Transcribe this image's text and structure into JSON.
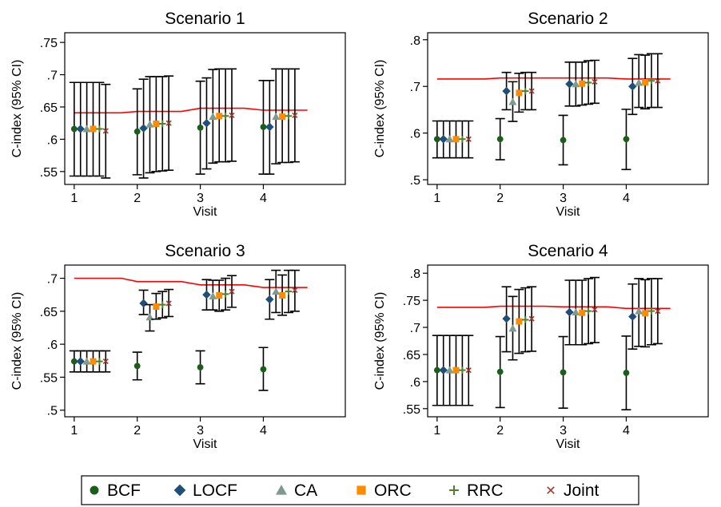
{
  "legend": {
    "placement": "bottom",
    "items": [
      {
        "label": "BCF",
        "color": "#1a5e1a",
        "icon": "circle-icon"
      },
      {
        "label": "LOCF",
        "color": "#1f4e79",
        "icon": "diamond-icon"
      },
      {
        "label": "CA",
        "color": "#7f9a8e",
        "icon": "triangle-icon"
      },
      {
        "label": "ORC",
        "color": "#ff8c00",
        "icon": "square-icon"
      },
      {
        "label": "RRC",
        "color": "#4f7f2f",
        "icon": "plus-icon"
      },
      {
        "label": "Joint",
        "color": "#a0392c",
        "icon": "cross-icon"
      }
    ]
  },
  "reference_color": "#ff0000",
  "chart_data": [
    {
      "type": "scatter",
      "title": "Scenario 1",
      "xlabel": "Visit",
      "ylabel": "C-index (95% CI)",
      "xticks": [
        1,
        2,
        3,
        4
      ],
      "yticks": [
        0.55,
        0.6,
        0.65,
        0.7,
        0.75
      ],
      "ytick_labels": [
        ".55",
        ".6",
        ".65",
        ".7",
        ".75"
      ],
      "xlim": [
        0.85,
        5.3
      ],
      "ylim": [
        0.53,
        0.765
      ],
      "reference_line": {
        "x": [
          1,
          1.75,
          2,
          2.7,
          3,
          3.7,
          4,
          4.7
        ],
        "y": [
          0.641,
          0.641,
          0.643,
          0.643,
          0.648,
          0.648,
          0.645,
          0.645
        ]
      },
      "series": [
        {
          "name": "BCF",
          "x": [
            1,
            2,
            3,
            4
          ],
          "y": [
            0.616,
            0.612,
            0.618,
            0.619
          ],
          "lower": [
            0.543,
            0.545,
            0.546,
            0.546
          ],
          "upper": [
            0.688,
            0.678,
            0.69,
            0.691
          ]
        },
        {
          "name": "LOCF",
          "x": [
            1.1,
            2.1,
            3.1,
            4.1
          ],
          "y": [
            0.616,
            0.617,
            0.625,
            0.619
          ],
          "lower": [
            0.543,
            0.54,
            0.554,
            0.546
          ],
          "upper": [
            0.688,
            0.693,
            0.695,
            0.691
          ]
        },
        {
          "name": "CA",
          "x": [
            1.2,
            2.2,
            3.2,
            4.2
          ],
          "y": [
            0.616,
            0.623,
            0.635,
            0.635
          ],
          "lower": [
            0.543,
            0.548,
            0.563,
            0.562
          ],
          "upper": [
            0.688,
            0.697,
            0.708,
            0.709
          ]
        },
        {
          "name": "ORC",
          "x": [
            1.3,
            2.3,
            3.3,
            4.3
          ],
          "y": [
            0.616,
            0.624,
            0.636,
            0.635
          ],
          "lower": [
            0.543,
            0.55,
            0.565,
            0.564
          ],
          "upper": [
            0.688,
            0.697,
            0.709,
            0.709
          ]
        },
        {
          "name": "RRC",
          "x": [
            1.4,
            2.4,
            3.4,
            4.4
          ],
          "y": [
            0.616,
            0.624,
            0.636,
            0.636
          ],
          "lower": [
            0.543,
            0.551,
            0.565,
            0.564
          ],
          "upper": [
            0.688,
            0.697,
            0.709,
            0.709
          ]
        },
        {
          "name": "Joint",
          "x": [
            1.5,
            2.5,
            3.5,
            4.5
          ],
          "y": [
            0.613,
            0.625,
            0.637,
            0.637
          ],
          "lower": [
            0.54,
            0.552,
            0.566,
            0.565
          ],
          "upper": [
            0.685,
            0.698,
            0.709,
            0.709
          ]
        }
      ]
    },
    {
      "type": "scatter",
      "title": "Scenario 2",
      "xlabel": "Visit",
      "ylabel": "C-index (95% CI)",
      "xticks": [
        1,
        2,
        3,
        4
      ],
      "yticks": [
        0.5,
        0.6,
        0.7,
        0.8
      ],
      "ytick_labels": [
        ".5",
        ".6",
        ".7",
        ".8"
      ],
      "xlim": [
        0.85,
        5.3
      ],
      "ylim": [
        0.49,
        0.815
      ],
      "reference_line": {
        "x": [
          1,
          1.75,
          2,
          2.7,
          3,
          3.7,
          4,
          4.7
        ],
        "y": [
          0.716,
          0.716,
          0.718,
          0.718,
          0.718,
          0.718,
          0.716,
          0.716
        ]
      },
      "series": [
        {
          "name": "BCF",
          "x": [
            1,
            2,
            3,
            4
          ],
          "y": [
            0.587,
            0.587,
            0.585,
            0.587
          ],
          "lower": [
            0.547,
            0.543,
            0.532,
            0.522
          ],
          "upper": [
            0.626,
            0.631,
            0.638,
            0.651
          ]
        },
        {
          "name": "LOCF",
          "x": [
            1.1,
            2.1,
            3.1,
            4.1
          ],
          "y": [
            0.587,
            0.69,
            0.705,
            0.7
          ],
          "lower": [
            0.547,
            0.65,
            0.658,
            0.64
          ],
          "upper": [
            0.626,
            0.73,
            0.752,
            0.76
          ]
        },
        {
          "name": "CA",
          "x": [
            1.2,
            2.2,
            3.2,
            4.2
          ],
          "y": [
            0.587,
            0.667,
            0.705,
            0.708
          ],
          "lower": [
            0.547,
            0.625,
            0.658,
            0.655
          ],
          "upper": [
            0.626,
            0.71,
            0.752,
            0.768
          ]
        },
        {
          "name": "ORC",
          "x": [
            1.3,
            2.3,
            3.3,
            4.3
          ],
          "y": [
            0.587,
            0.686,
            0.706,
            0.709
          ],
          "lower": [
            0.547,
            0.645,
            0.66,
            0.652
          ],
          "upper": [
            0.626,
            0.728,
            0.752,
            0.767
          ]
        },
        {
          "name": "RRC",
          "x": [
            1.4,
            2.4,
            3.4,
            4.4
          ],
          "y": [
            0.587,
            0.69,
            0.708,
            0.712
          ],
          "lower": [
            0.547,
            0.65,
            0.662,
            0.655
          ],
          "upper": [
            0.626,
            0.73,
            0.755,
            0.77
          ]
        },
        {
          "name": "Joint",
          "x": [
            1.5,
            2.5,
            3.5,
            4.5
          ],
          "y": [
            0.587,
            0.69,
            0.71,
            0.712
          ],
          "lower": [
            0.547,
            0.65,
            0.664,
            0.655
          ],
          "upper": [
            0.626,
            0.73,
            0.756,
            0.77
          ]
        }
      ]
    },
    {
      "type": "scatter",
      "title": "Scenario 3",
      "xlabel": "Visit",
      "ylabel": "C-index (95% CI)",
      "xticks": [
        1,
        2,
        3,
        4
      ],
      "yticks": [
        0.5,
        0.55,
        0.6,
        0.65,
        0.7
      ],
      "ytick_labels": [
        ".5",
        ".55",
        ".6",
        ".65",
        ".7"
      ],
      "xlim": [
        0.85,
        5.3
      ],
      "ylim": [
        0.49,
        0.72
      ],
      "reference_line": {
        "x": [
          1,
          1.75,
          2,
          2.7,
          3,
          3.7,
          4,
          4.7
        ],
        "y": [
          0.7,
          0.7,
          0.695,
          0.695,
          0.69,
          0.69,
          0.686,
          0.686
        ]
      },
      "series": [
        {
          "name": "BCF",
          "x": [
            1,
            2,
            3,
            4
          ],
          "y": [
            0.574,
            0.567,
            0.565,
            0.562
          ],
          "lower": [
            0.558,
            0.546,
            0.54,
            0.53
          ],
          "upper": [
            0.59,
            0.588,
            0.59,
            0.595
          ]
        },
        {
          "name": "LOCF",
          "x": [
            1.1,
            2.1,
            3.1,
            4.1
          ],
          "y": [
            0.574,
            0.662,
            0.675,
            0.668
          ],
          "lower": [
            0.558,
            0.645,
            0.652,
            0.638
          ],
          "upper": [
            0.59,
            0.682,
            0.698,
            0.698
          ]
        },
        {
          "name": "CA",
          "x": [
            1.2,
            2.2,
            3.2,
            4.2
          ],
          "y": [
            0.574,
            0.641,
            0.673,
            0.68
          ],
          "lower": [
            0.558,
            0.62,
            0.652,
            0.648
          ],
          "upper": [
            0.59,
            0.66,
            0.697,
            0.712
          ]
        },
        {
          "name": "ORC",
          "x": [
            1.3,
            2.3,
            3.3,
            4.3
          ],
          "y": [
            0.574,
            0.657,
            0.674,
            0.674
          ],
          "lower": [
            0.558,
            0.638,
            0.65,
            0.644
          ],
          "upper": [
            0.59,
            0.677,
            0.697,
            0.705
          ]
        },
        {
          "name": "RRC",
          "x": [
            1.4,
            2.4,
            3.4,
            4.4
          ],
          "y": [
            0.574,
            0.66,
            0.676,
            0.68
          ],
          "lower": [
            0.558,
            0.64,
            0.652,
            0.648
          ],
          "upper": [
            0.59,
            0.68,
            0.7,
            0.712
          ]
        },
        {
          "name": "Joint",
          "x": [
            1.5,
            2.5,
            3.5,
            4.5
          ],
          "y": [
            0.574,
            0.662,
            0.68,
            0.682
          ],
          "lower": [
            0.558,
            0.642,
            0.656,
            0.65
          ],
          "upper": [
            0.59,
            0.683,
            0.704,
            0.712
          ]
        }
      ]
    },
    {
      "type": "scatter",
      "title": "Scenario 4",
      "xlabel": "Visit",
      "ylabel": "C-index (95% CI)",
      "xticks": [
        1,
        2,
        3,
        4
      ],
      "yticks": [
        0.55,
        0.6,
        0.65,
        0.7,
        0.75,
        0.8
      ],
      "ytick_labels": [
        ".55",
        ".6",
        ".65",
        ".7",
        ".75",
        ".8"
      ],
      "xlim": [
        0.85,
        5.3
      ],
      "ylim": [
        0.535,
        0.815
      ],
      "reference_line": {
        "x": [
          1,
          1.75,
          2,
          2.7,
          3,
          3.7,
          4,
          4.7
        ],
        "y": [
          0.737,
          0.737,
          0.739,
          0.739,
          0.738,
          0.738,
          0.735,
          0.735
        ]
      },
      "series": [
        {
          "name": "BCF",
          "x": [
            1,
            2,
            3,
            4
          ],
          "y": [
            0.621,
            0.618,
            0.617,
            0.616
          ],
          "lower": [
            0.556,
            0.552,
            0.551,
            0.548
          ],
          "upper": [
            0.685,
            0.683,
            0.683,
            0.684
          ]
        },
        {
          "name": "LOCF",
          "x": [
            1.1,
            2.1,
            3.1,
            4.1
          ],
          "y": [
            0.621,
            0.716,
            0.728,
            0.72
          ],
          "lower": [
            0.556,
            0.655,
            0.668,
            0.66
          ],
          "upper": [
            0.685,
            0.775,
            0.787,
            0.78
          ]
        },
        {
          "name": "CA",
          "x": [
            1.2,
            2.2,
            3.2,
            4.2
          ],
          "y": [
            0.621,
            0.698,
            0.728,
            0.73
          ],
          "lower": [
            0.556,
            0.64,
            0.668,
            0.665
          ],
          "upper": [
            0.685,
            0.757,
            0.787,
            0.79
          ]
        },
        {
          "name": "ORC",
          "x": [
            1.3,
            2.3,
            3.3,
            4.3
          ],
          "y": [
            0.621,
            0.711,
            0.727,
            0.726
          ],
          "lower": [
            0.556,
            0.652,
            0.668,
            0.664
          ],
          "upper": [
            0.685,
            0.77,
            0.787,
            0.788
          ]
        },
        {
          "name": "RRC",
          "x": [
            1.4,
            2.4,
            3.4,
            4.4
          ],
          "y": [
            0.621,
            0.714,
            0.73,
            0.73
          ],
          "lower": [
            0.556,
            0.655,
            0.67,
            0.668
          ],
          "upper": [
            0.685,
            0.773,
            0.79,
            0.79
          ]
        },
        {
          "name": "Joint",
          "x": [
            1.5,
            2.5,
            3.5,
            4.5
          ],
          "y": [
            0.621,
            0.716,
            0.733,
            0.73
          ],
          "lower": [
            0.556,
            0.656,
            0.672,
            0.67
          ],
          "upper": [
            0.685,
            0.775,
            0.792,
            0.79
          ]
        }
      ]
    }
  ]
}
